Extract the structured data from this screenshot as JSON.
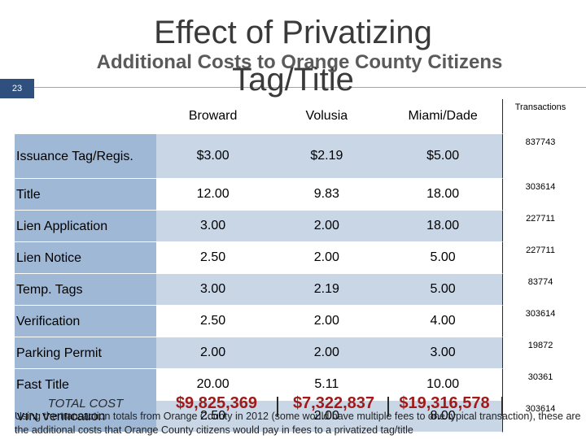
{
  "slide_number": "23",
  "title": {
    "main": "Effect of Privatizing",
    "subtitle": "Additional Costs to Orange County Citizens",
    "tag": "Tag/Title"
  },
  "table": {
    "headers": [
      "Broward",
      "Volusia",
      "Miami/Dade",
      "Transactions"
    ],
    "rows": [
      {
        "label": "Issuance Tag/Regis.",
        "broward": "$3.00",
        "volusia": "$2.19",
        "miami": "$5.00",
        "transactions": "837743"
      },
      {
        "label": "Title",
        "broward": "12.00",
        "volusia": "9.83",
        "miami": "18.00",
        "transactions": "303614"
      },
      {
        "label": "Lien Application",
        "broward": "3.00",
        "volusia": "2.00",
        "miami": "18.00",
        "transactions": "227711"
      },
      {
        "label": "Lien Notice",
        "broward": "2.50",
        "volusia": "2.00",
        "miami": "5.00",
        "transactions": "227711"
      },
      {
        "label": "Temp. Tags",
        "broward": "3.00",
        "volusia": "2.19",
        "miami": "5.00",
        "transactions": "83774"
      },
      {
        "label": "Verification",
        "broward": "2.50",
        "volusia": "2.00",
        "miami": "4.00",
        "transactions": "303614"
      },
      {
        "label": "Parking Permit",
        "broward": "2.00",
        "volusia": "2.00",
        "miami": "3.00",
        "transactions": "19872"
      },
      {
        "label": "Fast Title",
        "broward": "20.00",
        "volusia": "5.11",
        "miami": "10.00",
        "transactions": "30361"
      },
      {
        "label": "VIN Verification",
        "broward": "2.50",
        "volusia": "2.00",
        "miami": "8.00",
        "transactions": "303614"
      }
    ],
    "total": {
      "label": "TOTAL COST",
      "broward": "$9,825,369",
      "volusia": "$7,322,837",
      "miami": "$19,316,578"
    }
  },
  "note": "Using the transaction totals from Orange County in 2012 (some would have multiple fees to one typical transaction), these are the additional costs that Orange County citizens would pay in fees to a privatized tag/title",
  "colors": {
    "label_band": "#9fb8d6",
    "row_band": "#c9d6e6",
    "slide_number_bg": "#2f4f7f",
    "total_text": "#a01a1a"
  }
}
